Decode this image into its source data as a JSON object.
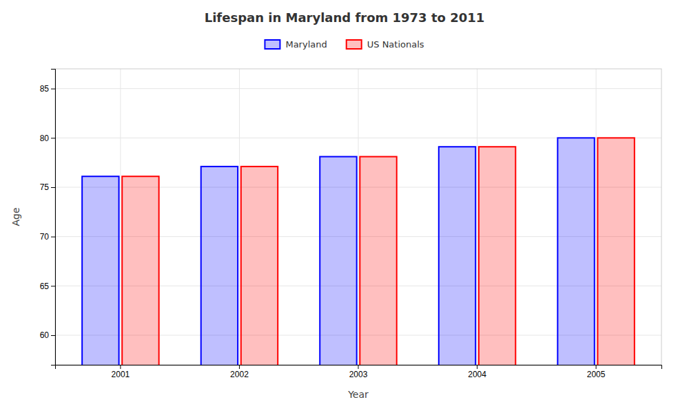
{
  "chart_data": {
    "type": "bar",
    "title": "Lifespan in Maryland from 1973 to 2011",
    "xlabel": "Year",
    "ylabel": "Age",
    "categories": [
      "2001",
      "2002",
      "2003",
      "2004",
      "2005"
    ],
    "series": [
      {
        "name": "Maryland",
        "color": "#0000ff",
        "values": [
          76.1,
          77.1,
          78.1,
          79.1,
          80.0
        ]
      },
      {
        "name": "US Nationals",
        "color": "#ff0000",
        "values": [
          76.1,
          77.1,
          78.1,
          79.1,
          80.0
        ]
      }
    ],
    "ylim": [
      57,
      87
    ],
    "yticks": [
      60,
      65,
      70,
      75,
      80,
      85
    ],
    "grid": true,
    "legend": "top"
  }
}
